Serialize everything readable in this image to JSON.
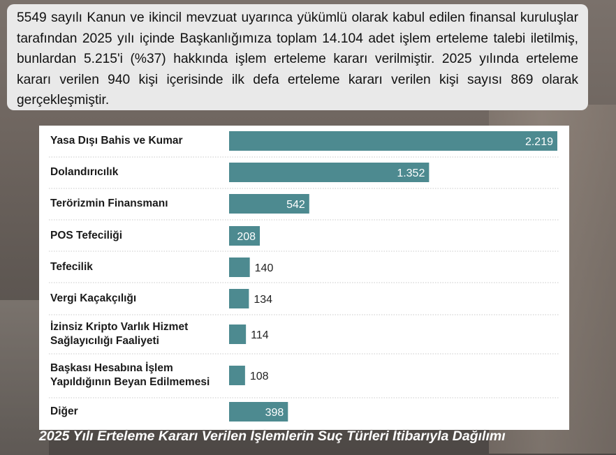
{
  "info_text": "5549 sayılı Kanun ve ikincil mevzuat uyarınca yükümlü olarak kabul edilen finansal kuruluşlar tarafından 2025 yılı içinde Başkanlığımıza toplam 14.104 adet işlem erteleme talebi iletilmiş, bunlardan 5.215'i (%37) hakkında işlem erteleme kararı verilmiştir. 2025 yılında erteleme kararı verilen 940 kişi içerisinde ilk defa erteleme kararı verilen kişi sayısı 869 olarak gerçekleşmiştir.",
  "caption": "2025 Yılı Erteleme Kararı Verilen İşlemlerin Suç Türleri İtibarıyla Dağılımı",
  "colors": {
    "bar": "#4d8a90",
    "track": "#ffffff",
    "label_inside": "#ffffff",
    "label_outside": "#222222"
  },
  "chart_data": {
    "type": "bar",
    "orientation": "horizontal",
    "categories": [
      "Yasa Dışı Bahis ve Kumar",
      "Dolandırıcılık",
      "Terörizmin Finansmanı",
      "POS Tefeciliği",
      "Tefecilik",
      "Vergi Kaçakçılığı",
      "İzinsiz Kripto Varlık Hizmet Sağlayıcılığı Faaliyeti",
      "Başkası Hesabına İşlem Yapıldığının Beyan Edilmemesi",
      "Diğer"
    ],
    "category_lines": [
      [
        "Yasa Dışı Bahis ve Kumar"
      ],
      [
        "Dolandırıcılık"
      ],
      [
        "Terörizmin Finansmanı"
      ],
      [
        "POS Tefeciliği"
      ],
      [
        "Tefecilik"
      ],
      [
        "Vergi Kaçakçılığı"
      ],
      [
        "İzinsiz Kripto Varlık Hizmet",
        "Sağlayıcılığı Faaliyeti"
      ],
      [
        "Başkası Hesabına İşlem",
        "Yapıldığının Beyan Edilmemesi"
      ],
      [
        "Diğer"
      ]
    ],
    "values": [
      2219,
      1352,
      542,
      208,
      140,
      134,
      114,
      108,
      398
    ],
    "value_labels": [
      "2.219",
      "1.352",
      "542",
      "208",
      "140",
      "134",
      "114",
      "108",
      "398"
    ],
    "xlim": [
      0,
      2219
    ],
    "grid": false
  }
}
